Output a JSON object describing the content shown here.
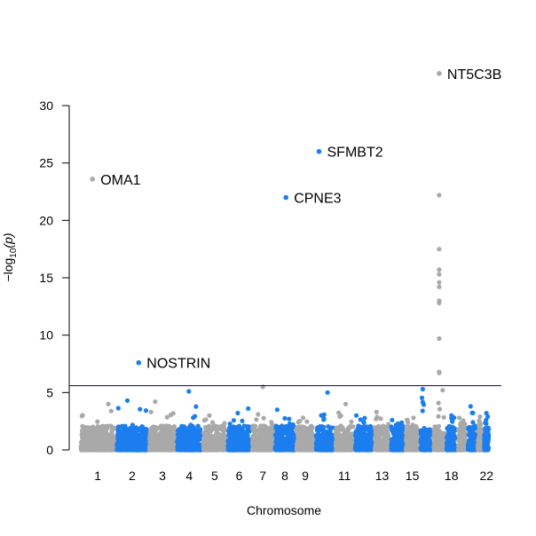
{
  "chart_data": {
    "type": "scatter",
    "xlabel": "Chromosome",
    "ylabel_parts": [
      "−log",
      "10",
      "(p)"
    ],
    "ylim": [
      0,
      30
    ],
    "y_ticks": [
      0,
      5,
      10,
      15,
      20,
      25,
      30
    ],
    "x_tick_labels": [
      "1",
      "2",
      "3",
      "4",
      "5",
      "6",
      "7",
      "8",
      "9",
      "11",
      "13",
      "15",
      "18",
      "22"
    ],
    "significance_line": 5.6,
    "colors": {
      "odd_chromosomes": "#a9a9a9",
      "even_chromosomes": "#1c7eee",
      "threshold_line": "#000080"
    },
    "chromosomes": [
      "1",
      "2",
      "3",
      "4",
      "5",
      "6",
      "7",
      "8",
      "9",
      "10",
      "11",
      "12",
      "13",
      "14",
      "15",
      "16",
      "17",
      "18",
      "19",
      "20",
      "21",
      "22"
    ],
    "background_max": [
      4.0,
      4.3,
      4.2,
      5.1,
      3.0,
      3.6,
      3.1,
      3.5,
      2.8,
      5.0,
      4.0,
      3.0,
      3.3,
      2.6,
      2.8,
      5.3,
      5.2,
      3.0,
      2.8,
      3.8,
      2.9,
      3.2
    ],
    "top_hits": [
      {
        "chromosome": "1",
        "position": 0.35,
        "y": 23.6,
        "gene": "OMA1"
      },
      {
        "chromosome": "2",
        "position": 0.7,
        "y": 7.6,
        "gene": "NOSTRIN"
      },
      {
        "chromosome": "8",
        "position": 0.55,
        "y": 22.0,
        "gene": "CPNE3"
      },
      {
        "chromosome": "10",
        "position": 0.2,
        "y": 26.0,
        "gene": "SFMBT2"
      },
      {
        "chromosome": "17",
        "position": 0.5,
        "y": 32.8,
        "gene": "NT5C3B"
      }
    ],
    "secondary_hits": [
      {
        "chromosome": "17",
        "position": 0.5,
        "values": [
          22.2,
          17.5,
          15.7,
          15.3,
          14.6,
          14.2,
          13.0,
          12.8,
          9.7,
          6.8,
          6.7
        ]
      },
      {
        "chromosome": "7",
        "position": 0.5,
        "values": [
          5.5
        ]
      }
    ]
  }
}
